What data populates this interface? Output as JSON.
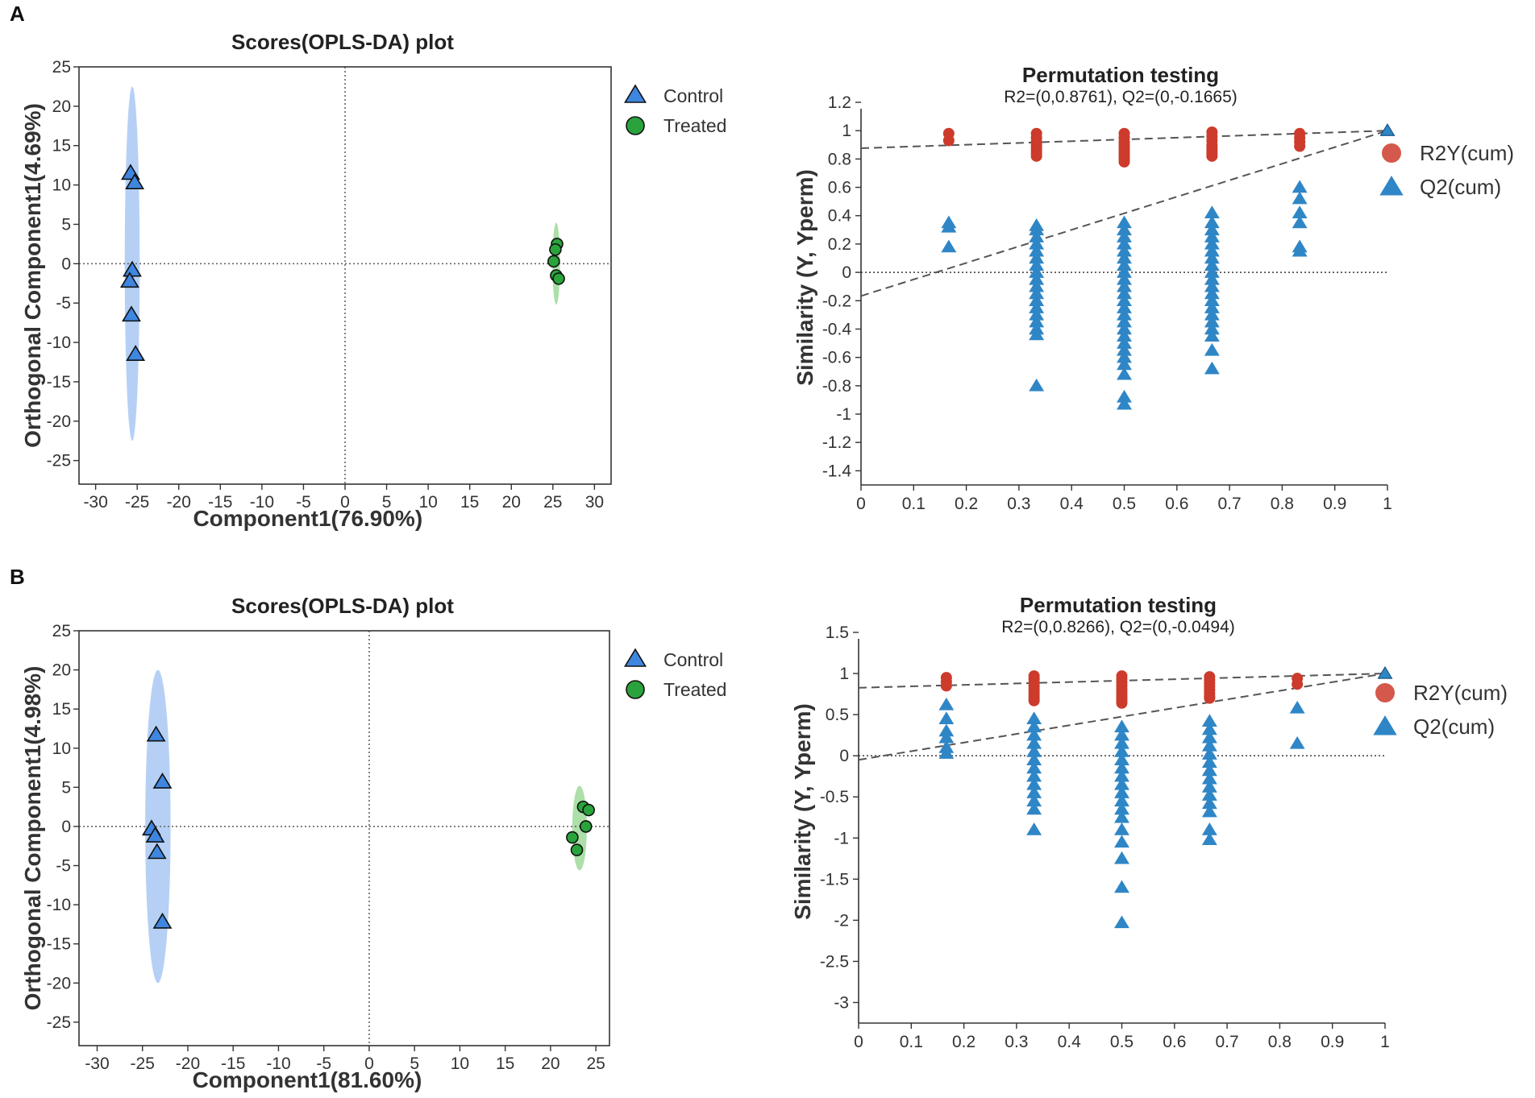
{
  "panel_labels": [
    "A",
    "B"
  ],
  "colors": {
    "control_fill": "#3f86e0",
    "treated_fill": "#2aa33c",
    "control_ellipse": "#a9c8f3",
    "treated_ellipse": "#9fd99a",
    "r2_color": "#cc3b2b",
    "q2_color": "#2f86c6",
    "ref_line": "#555555"
  },
  "chart_data": [
    {
      "id": "A-scores",
      "type": "scatter",
      "title": "Scores(OPLS-DA) plot",
      "xlabel": "Component1(76.90%)",
      "ylabel": "Orthogonal Component1(4.69%)",
      "xlim": [
        -32,
        32
      ],
      "ylim": [
        -28,
        25
      ],
      "xticks": [
        -30,
        -25,
        -20,
        -15,
        -10,
        -5,
        0,
        5,
        10,
        15,
        20,
        25,
        30
      ],
      "yticks": [
        25,
        20,
        15,
        10,
        5,
        0,
        -5,
        -10,
        -15,
        -20,
        -25
      ],
      "legend": [
        "Control",
        "Treated"
      ],
      "series": [
        {
          "name": "Control",
          "marker": "triangle",
          "x": [
            -25.8,
            -25.3,
            -25.6,
            -25.9,
            -25.7,
            -25.2
          ],
          "y": [
            11.5,
            10.3,
            -0.8,
            -2.2,
            -6.5,
            -11.5
          ]
        },
        {
          "name": "Treated",
          "marker": "circle",
          "x": [
            25.5,
            25.3,
            25.1,
            25.4,
            25.7
          ],
          "y": [
            2.5,
            1.8,
            0.3,
            -1.5,
            -1.9
          ]
        }
      ],
      "ellipses": [
        {
          "group": "Control",
          "cx": -25.6,
          "cy": 0,
          "rx": 0.9,
          "ry": 22.5
        },
        {
          "group": "Treated",
          "cx": 25.4,
          "cy": 0,
          "rx": 0.45,
          "ry": 5.2
        }
      ]
    },
    {
      "id": "A-permutation",
      "type": "scatter",
      "title": "Permutation testing",
      "subtitle": "R2=(0,0.8761), Q2=(0,-0.1665)",
      "xlabel": "",
      "ylabel": "Similarity (Y, Yperm)",
      "xlim": [
        0,
        1
      ],
      "ylim": [
        -1.5,
        1.2
      ],
      "xticks": [
        0,
        0.1,
        0.2,
        0.3,
        0.4,
        0.5,
        0.6,
        0.7,
        0.8,
        0.9,
        1
      ],
      "yticks": [
        1.2,
        1,
        0.8,
        0.6,
        0.4,
        0.2,
        0,
        -0.2,
        -0.4,
        -0.6,
        -0.8,
        -1,
        -1.2,
        -1.4
      ],
      "legend": [
        "R2Y(cum)",
        "Q2(cum)"
      ],
      "r2_line": {
        "intercept": 0.8761
      },
      "q2_line": {
        "intercept": -0.1665
      },
      "r2_groups": [
        {
          "x": 0.1667,
          "y": [
            0.98,
            0.93
          ]
        },
        {
          "x": 0.3333,
          "y": [
            0.98,
            0.95,
            0.92,
            0.9,
            0.88,
            0.86,
            0.84,
            0.82
          ]
        },
        {
          "x": 0.5,
          "y": [
            0.98,
            0.95,
            0.92,
            0.9,
            0.88,
            0.86,
            0.84,
            0.82,
            0.8,
            0.78
          ]
        },
        {
          "x": 0.6667,
          "y": [
            0.99,
            0.96,
            0.93,
            0.9,
            0.88,
            0.86,
            0.84,
            0.82
          ]
        },
        {
          "x": 0.8333,
          "y": [
            0.98,
            0.95,
            0.92,
            0.89
          ]
        },
        {
          "x": 1.0,
          "y": [
            1.0
          ]
        }
      ],
      "q2_groups": [
        {
          "x": 0.1667,
          "y": [
            0.35,
            0.32,
            0.18
          ]
        },
        {
          "x": 0.3333,
          "y": [
            0.33,
            0.3,
            0.25,
            0.2,
            0.15,
            0.1,
            0.05,
            0,
            -0.05,
            -0.1,
            -0.15,
            -0.2,
            -0.25,
            -0.3,
            -0.35,
            -0.4,
            -0.44,
            -0.8
          ]
        },
        {
          "x": 0.5,
          "y": [
            0.35,
            0.3,
            0.25,
            0.2,
            0.15,
            0.1,
            0.05,
            0,
            -0.05,
            -0.1,
            -0.15,
            -0.2,
            -0.25,
            -0.3,
            -0.35,
            -0.4,
            -0.45,
            -0.5,
            -0.55,
            -0.6,
            -0.65,
            -0.72,
            -0.88,
            -0.93
          ]
        },
        {
          "x": 0.6667,
          "y": [
            0.42,
            0.35,
            0.3,
            0.25,
            0.2,
            0.15,
            0.1,
            0.05,
            0,
            -0.05,
            -0.1,
            -0.15,
            -0.2,
            -0.25,
            -0.3,
            -0.35,
            -0.4,
            -0.45,
            -0.55,
            -0.68
          ]
        },
        {
          "x": 0.8333,
          "y": [
            0.6,
            0.52,
            0.42,
            0.35,
            0.18,
            0.15
          ]
        },
        {
          "x": 1.0,
          "y": [
            1.0
          ]
        }
      ]
    },
    {
      "id": "B-scores",
      "type": "scatter",
      "title": "Scores(OPLS-DA) plot",
      "xlabel": "Component1(81.60%)",
      "ylabel": "Orthogonal Component1(4.98%)",
      "xlim": [
        -32,
        26.5
      ],
      "ylim": [
        -28,
        25
      ],
      "xticks": [
        -30,
        -25,
        -20,
        -15,
        -10,
        -5,
        0,
        5,
        10,
        15,
        20,
        25
      ],
      "yticks": [
        25,
        20,
        15,
        10,
        5,
        0,
        -5,
        -10,
        -15,
        -20,
        -25
      ],
      "legend": [
        "Control",
        "Treated"
      ],
      "series": [
        {
          "name": "Control",
          "marker": "triangle",
          "x": [
            -23.5,
            -22.8,
            -24.0,
            -23.6,
            -23.4,
            -22.8
          ],
          "y": [
            11.7,
            5.7,
            -0.3,
            -1.2,
            -3.3,
            -12.2
          ]
        },
        {
          "name": "Treated",
          "marker": "circle",
          "x": [
            23.6,
            24.2,
            23.9,
            22.4,
            22.9
          ],
          "y": [
            2.5,
            2.1,
            0.0,
            -1.4,
            -3.0
          ]
        }
      ],
      "ellipses": [
        {
          "group": "Control",
          "cx": -23.3,
          "cy": 0,
          "rx": 1.4,
          "ry": 20
        },
        {
          "group": "Treated",
          "cx": 23.2,
          "cy": -0.2,
          "rx": 0.8,
          "ry": 5.4
        }
      ]
    },
    {
      "id": "B-permutation",
      "type": "scatter",
      "title": "Permutation testing",
      "subtitle": "R2=(0,0.8266), Q2=(0,-0.0494)",
      "xlabel": "",
      "ylabel": "Similarity (Y, Yperm)",
      "xlim": [
        0,
        1
      ],
      "ylim": [
        -3.25,
        1.5
      ],
      "xticks": [
        0,
        0.1,
        0.2,
        0.3,
        0.4,
        0.5,
        0.6,
        0.7,
        0.8,
        0.9,
        1
      ],
      "yticks": [
        1.5,
        1,
        0.5,
        0,
        -0.5,
        -1,
        -1.5,
        -2,
        -2.5,
        -3
      ],
      "legend": [
        "R2Y(cum)",
        "Q2(cum)"
      ],
      "r2_line": {
        "intercept": 0.8266
      },
      "q2_line": {
        "intercept": -0.0494
      },
      "r2_groups": [
        {
          "x": 0.1667,
          "y": [
            0.95,
            0.9,
            0.85
          ]
        },
        {
          "x": 0.3333,
          "y": [
            0.97,
            0.93,
            0.89,
            0.85,
            0.81,
            0.77,
            0.73,
            0.7,
            0.67
          ]
        },
        {
          "x": 0.5,
          "y": [
            0.97,
            0.93,
            0.89,
            0.85,
            0.81,
            0.77,
            0.73,
            0.7,
            0.67,
            0.64
          ]
        },
        {
          "x": 0.6667,
          "y": [
            0.96,
            0.92,
            0.88,
            0.84,
            0.8,
            0.76,
            0.72,
            0.7
          ]
        },
        {
          "x": 0.8333,
          "y": [
            0.94,
            0.87
          ]
        },
        {
          "x": 1.0,
          "y": [
            1.0
          ]
        }
      ],
      "q2_groups": [
        {
          "x": 0.1667,
          "y": [
            0.62,
            0.45,
            0.3,
            0.22,
            0.1,
            0.03
          ]
        },
        {
          "x": 0.3333,
          "y": [
            0.45,
            0.35,
            0.25,
            0.15,
            0.05,
            -0.05,
            -0.15,
            -0.25,
            -0.35,
            -0.45,
            -0.55,
            -0.65,
            -0.9
          ]
        },
        {
          "x": 0.5,
          "y": [
            0.35,
            0.25,
            0.15,
            0.05,
            -0.05,
            -0.15,
            -0.25,
            -0.35,
            -0.45,
            -0.55,
            -0.65,
            -0.75,
            -0.9,
            -1.05,
            -1.25,
            -1.6,
            -2.03
          ]
        },
        {
          "x": 0.6667,
          "y": [
            0.42,
            0.32,
            0.22,
            0.12,
            0.02,
            -0.08,
            -0.18,
            -0.28,
            -0.38,
            -0.48,
            -0.58,
            -0.68,
            -0.9,
            -1.02
          ]
        },
        {
          "x": 0.8333,
          "y": [
            0.58,
            0.15
          ]
        },
        {
          "x": 1.0,
          "y": [
            1.0
          ]
        }
      ]
    }
  ]
}
